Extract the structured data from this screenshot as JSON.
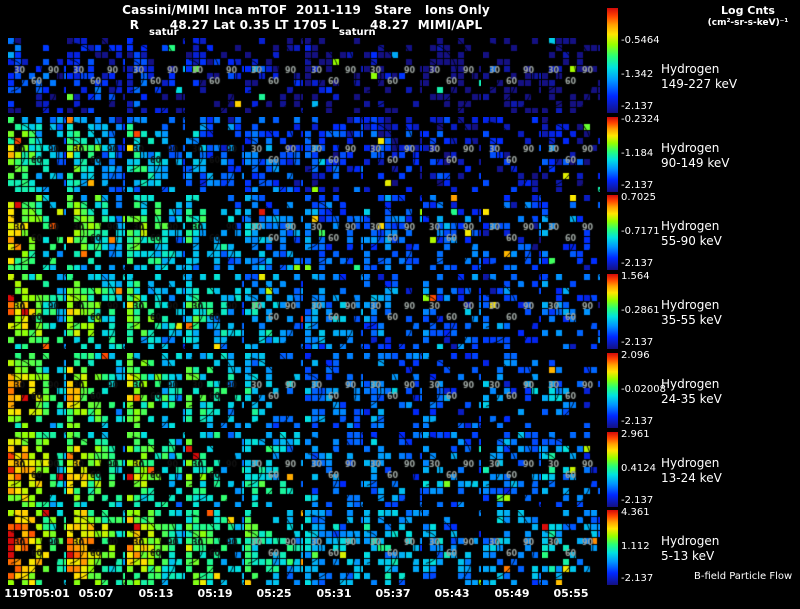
{
  "header": {
    "title_line1": "Cassini/MIMI Inca mTOF  2011-119   Stare   Ions Only",
    "title_line2": "R       48.27 Lat 0.35 LT 1705 L       48.27  MIMI/APL",
    "log_cnts_label": "Log Cnts",
    "log_cnts_units": "(cm²-sr-s-keV)⁻¹",
    "marker_left": "satur",
    "marker_right": "saturn"
  },
  "footer": {
    "bfield_label": "B-field Particle Flow"
  },
  "time_labels": [
    "119T05:01",
    "05:07",
    "05:13",
    "05:19",
    "05:25",
    "05:31",
    "05:37",
    "05:43",
    "05:49",
    "05:55"
  ],
  "rows": [
    {
      "species": "Hydrogen",
      "energy": "149-227 keV",
      "scale_top": "-0.5464",
      "scale_mid": "-1.342",
      "scale_bottom": "-2.137"
    },
    {
      "species": "Hydrogen",
      "energy": "90-149 keV",
      "scale_top": "-0.2324",
      "scale_mid": "-1.184",
      "scale_bottom": "-2.137"
    },
    {
      "species": "Hydrogen",
      "energy": "55-90 keV",
      "scale_top": "0.7025",
      "scale_mid": "-0.7171",
      "scale_bottom": "-2.137"
    },
    {
      "species": "Hydrogen",
      "energy": "35-55 keV",
      "scale_top": "1.564",
      "scale_mid": "-0.2861",
      "scale_bottom": "-2.137"
    },
    {
      "species": "Hydrogen",
      "energy": "24-35 keV",
      "scale_top": "2.096",
      "scale_mid": "-0.02008",
      "scale_bottom": "-2.137"
    },
    {
      "species": "Hydrogen",
      "energy": "13-24 keV",
      "scale_top": "2.961",
      "scale_mid": "0.4124",
      "scale_bottom": "-2.137"
    },
    {
      "species": "Hydrogen",
      "energy": "5-13 keV",
      "scale_top": "4.361",
      "scale_mid": "1.112",
      "scale_bottom": "-2.137"
    }
  ],
  "chart_data": {
    "type": "heatmap",
    "title": "Cassini/MIMI Inca mTOF 2011-119 Stare Ions Only",
    "annotations": {
      "R": "48.27",
      "Lat": "0.35",
      "LT": "1705",
      "L": "48.27",
      "instrument": "MIMI/APL",
      "mode": "Stare",
      "filter": "Ions Only"
    },
    "colorbar_label": "Log Cnts (cm²-sr-s-keV)⁻¹",
    "x_time_labels": [
      "119T05:01",
      "05:07",
      "05:13",
      "05:19",
      "05:25",
      "05:31",
      "05:37",
      "05:43",
      "05:49",
      "05:55"
    ],
    "x_cadence_minutes": 6,
    "panel_grid": {
      "rows": 7,
      "columns": 10
    },
    "colormap": "rainbow",
    "pitch_angle_contours_deg": [
      30,
      60,
      90,
      120
    ],
    "contour_label_list": [
      "30",
      "60",
      "90",
      "120"
    ],
    "rows": [
      {
        "species": "Hydrogen",
        "energy_keV": [
          149,
          227
        ],
        "log_cnts_ticks": [
          -0.5464,
          -1.342,
          -2.137
        ],
        "render": {
          "base": 0.08,
          "core": 0.15,
          "fill": 0.6,
          "colFall": 0.03
        }
      },
      {
        "species": "Hydrogen",
        "energy_keV": [
          90,
          149
        ],
        "log_cnts_ticks": [
          -0.2324,
          -1.184,
          -2.137
        ],
        "render": {
          "base": 0.2,
          "core": 0.5,
          "fill": 0.78,
          "colFall": 0.05
        }
      },
      {
        "species": "Hydrogen",
        "energy_keV": [
          55,
          90
        ],
        "log_cnts_ticks": [
          0.7025,
          -0.7171,
          -2.137
        ],
        "render": {
          "base": 0.3,
          "core": 0.52,
          "fill": 0.85,
          "colFall": 0.05
        }
      },
      {
        "species": "Hydrogen",
        "energy_keV": [
          35,
          55
        ],
        "log_cnts_ticks": [
          1.564,
          -0.2861,
          -2.137
        ],
        "render": {
          "base": 0.32,
          "core": 0.55,
          "fill": 0.82,
          "colFall": 0.06
        }
      },
      {
        "species": "Hydrogen",
        "energy_keV": [
          24,
          35
        ],
        "log_cnts_ticks": [
          2.096,
          -0.02008,
          -2.137
        ],
        "render": {
          "base": 0.33,
          "core": 0.58,
          "fill": 0.75,
          "colFall": 0.07
        }
      },
      {
        "species": "Hydrogen",
        "energy_keV": [
          13,
          24
        ],
        "log_cnts_ticks": [
          2.961,
          0.4124,
          -2.137
        ],
        "render": {
          "base": 0.36,
          "core": 0.62,
          "fill": 0.8,
          "colFall": 0.05
        }
      },
      {
        "species": "Hydrogen",
        "energy_keV": [
          5,
          13
        ],
        "log_cnts_ticks": [
          4.361,
          1.112,
          -2.137
        ],
        "render": {
          "base": 0.4,
          "core": 0.66,
          "fill": 0.88,
          "colFall": 0.04
        }
      }
    ]
  }
}
